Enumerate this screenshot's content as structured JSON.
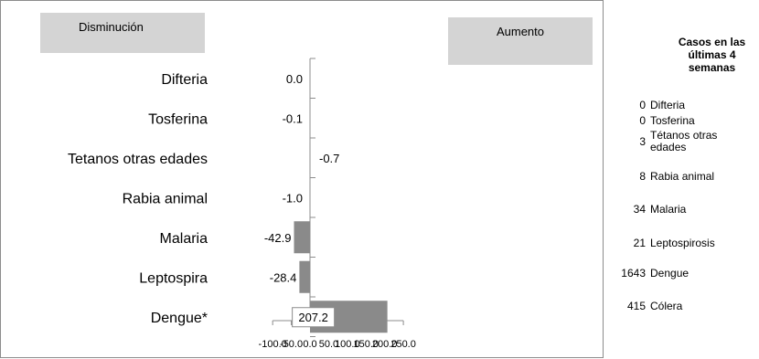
{
  "labels": {
    "decrease": "Disminución",
    "increase": "Aumento"
  },
  "chart_data": {
    "type": "bar",
    "orientation": "horizontal",
    "categories": [
      "Difteria",
      "Tosferina",
      "Tetanos otras edades",
      "Rabia animal",
      "Malaria",
      "Leptospira",
      "Dengue*"
    ],
    "values": [
      0.0,
      -0.1,
      -0.7,
      -1.0,
      -42.9,
      -28.4,
      207.2
    ],
    "value_labels": [
      "0.0",
      "-0.1",
      "-0.7",
      "-1.0",
      "-42.9",
      "-28.4",
      "207.2"
    ],
    "xlim": [
      -100,
      250
    ],
    "xticks": [
      "-100.0",
      "-50.0",
      "0.0",
      "50.0",
      "100.0",
      "150.0",
      "200.0",
      "250.0"
    ],
    "xtick_values": [
      -100,
      -50,
      0,
      50,
      100,
      150,
      200,
      250
    ],
    "bar_color": "#8a8a8a",
    "grid": false
  },
  "side_table": {
    "title": "Casos en las últimas 4 semanas",
    "rows": [
      {
        "count": "0",
        "name": "Difteria"
      },
      {
        "count": "0",
        "name": "Tosferina"
      },
      {
        "count": "3",
        "name": "Tétanos otras edades"
      },
      {
        "count": "8",
        "name": "Rabia animal"
      },
      {
        "count": "34",
        "name": "Malaria"
      },
      {
        "count": "21",
        "name": "Leptospirosis"
      },
      {
        "count": "1643",
        "name": "Dengue"
      },
      {
        "count": "415",
        "name": "Cólera"
      }
    ]
  }
}
